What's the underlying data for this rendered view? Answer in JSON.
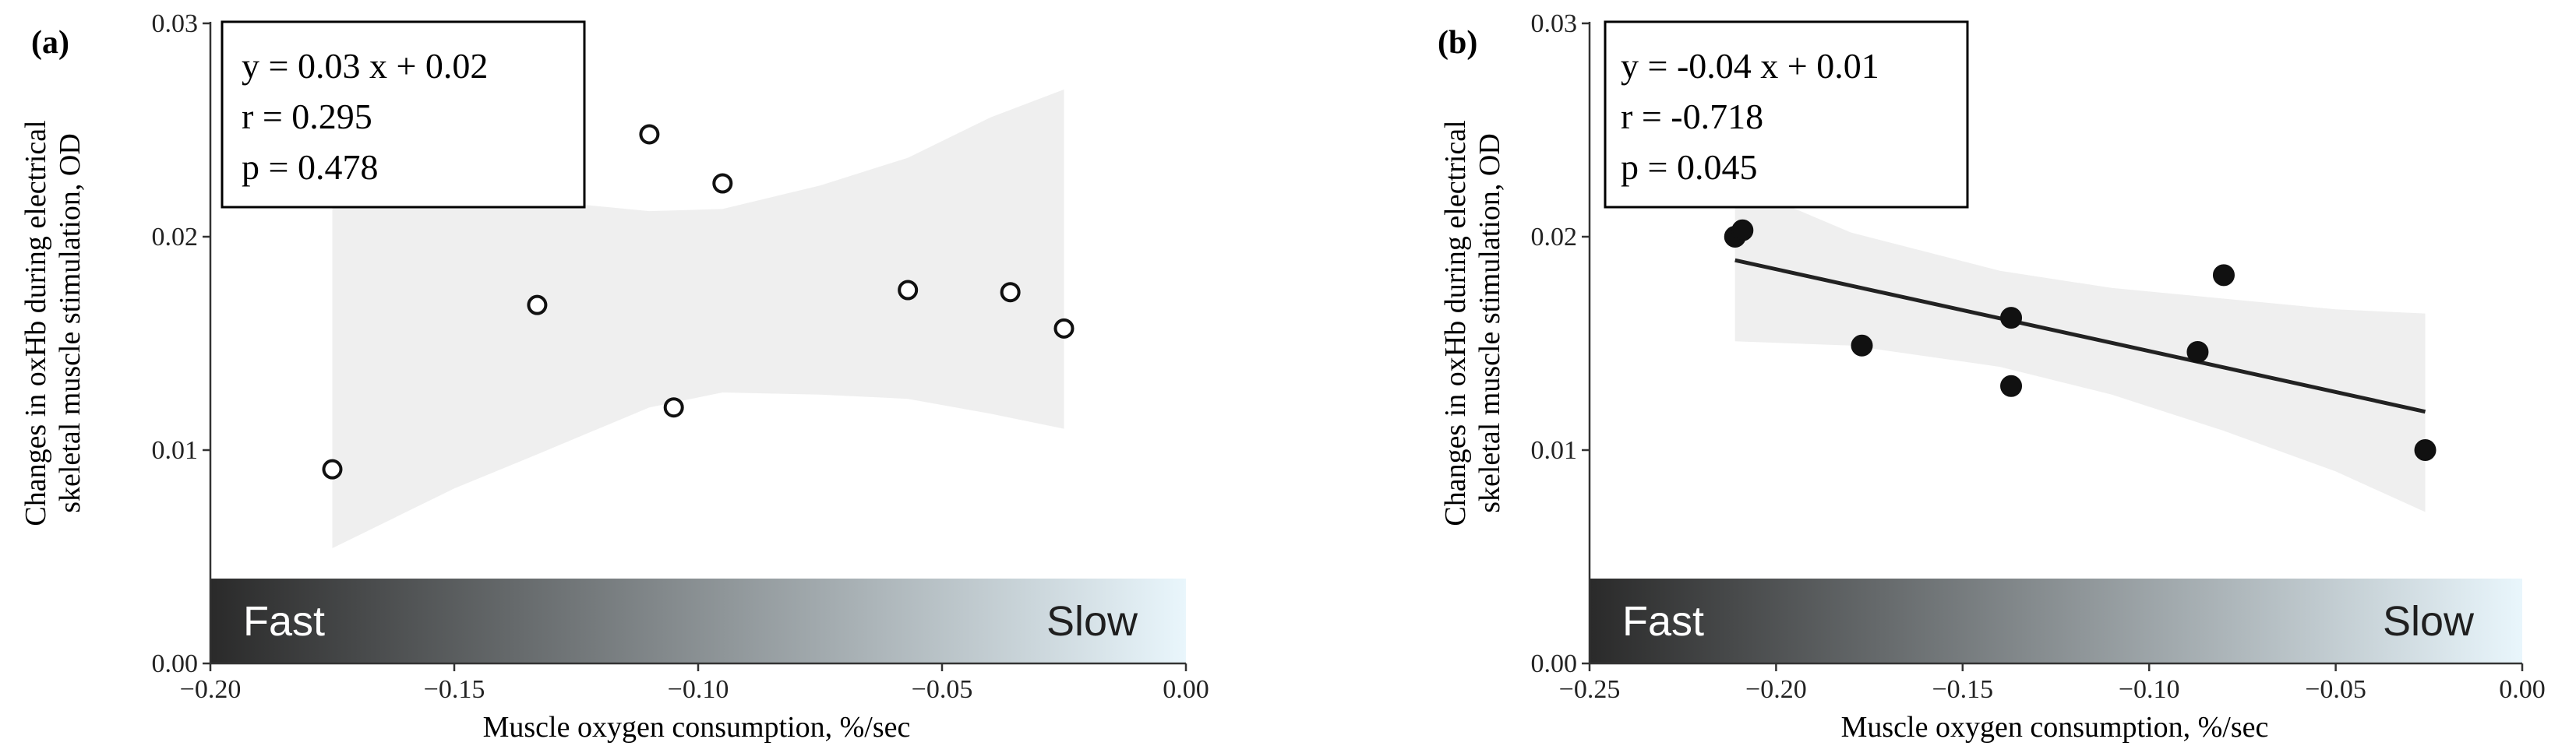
{
  "chart_data": [
    {
      "type": "scatter",
      "panel_label": "(a)",
      "xlabel": "Muscle oxygen consumption, %/sec",
      "ylabel_lines": [
        "Changes in oxHb during electrical",
        "skeletal muscle stimulation, OD"
      ],
      "xlim": [
        -0.2,
        0.0
      ],
      "ylim": [
        0.0,
        0.03
      ],
      "xticks": [
        -0.2,
        -0.15,
        -0.1,
        -0.05,
        0.0
      ],
      "xtick_labels": [
        "−0.20",
        "−0.15",
        "−0.10",
        "−0.05",
        "0.00"
      ],
      "yticks": [
        0.0,
        0.01,
        0.02,
        0.03
      ],
      "ytick_labels": [
        "0.00",
        "0.01",
        "0.02",
        "0.03"
      ],
      "marker": "open-circle",
      "show_fit_line": false,
      "stats": [
        "y = 0.03 x + 0.02",
        "r = 0.295",
        "p = 0.478"
      ],
      "gradient_bar": {
        "left_label": "Fast",
        "right_label": "Slow",
        "colors": [
          "#2a2a2a",
          "#e9f6fc"
        ]
      },
      "points": [
        {
          "x": -0.175,
          "y": 0.0091
        },
        {
          "x": -0.133,
          "y": 0.0168
        },
        {
          "x": -0.11,
          "y": 0.0248
        },
        {
          "x": -0.105,
          "y": 0.012
        },
        {
          "x": -0.095,
          "y": 0.0225
        },
        {
          "x": -0.057,
          "y": 0.0175
        },
        {
          "x": -0.036,
          "y": 0.0174
        },
        {
          "x": -0.025,
          "y": 0.0157
        }
      ],
      "confidence_band": {
        "x": [
          -0.175,
          -0.15,
          -0.133,
          -0.11,
          -0.095,
          -0.075,
          -0.057,
          -0.04,
          -0.025
        ],
        "upper": [
          0.0229,
          0.0222,
          0.0217,
          0.0212,
          0.0213,
          0.0224,
          0.0237,
          0.0256,
          0.0269
        ],
        "lower": [
          0.0054,
          0.0082,
          0.0098,
          0.012,
          0.0127,
          0.0126,
          0.0124,
          0.0117,
          0.011
        ]
      }
    },
    {
      "type": "scatter",
      "panel_label": "(b)",
      "xlabel": "Muscle oxygen consumption, %/sec",
      "ylabel_lines": [
        "Changes in oxHb during electrical",
        "skeletal muscle stimulation, OD"
      ],
      "xlim": [
        -0.25,
        0.0
      ],
      "ylim": [
        0.0,
        0.03
      ],
      "xticks": [
        -0.25,
        -0.2,
        -0.15,
        -0.1,
        -0.05,
        0.0
      ],
      "xtick_labels": [
        "−0.25",
        "−0.20",
        "−0.15",
        "−0.10",
        "−0.05",
        "0.00"
      ],
      "yticks": [
        0.0,
        0.01,
        0.02,
        0.03
      ],
      "ytick_labels": [
        "0.00",
        "0.01",
        "0.02",
        "0.03"
      ],
      "marker": "filled-circle",
      "show_fit_line": true,
      "fit_line": {
        "x": [
          -0.211,
          -0.026
        ],
        "y": [
          0.0189,
          0.0118
        ]
      },
      "stats": [
        "y = -0.04 x + 0.01",
        "r = -0.718",
        "p = 0.045"
      ],
      "gradient_bar": {
        "left_label": "Fast",
        "right_label": "Slow",
        "colors": [
          "#2a2a2a",
          "#e9f6fc"
        ]
      },
      "points": [
        {
          "x": -0.211,
          "y": 0.02
        },
        {
          "x": -0.209,
          "y": 0.0203
        },
        {
          "x": -0.177,
          "y": 0.0149
        },
        {
          "x": -0.137,
          "y": 0.0162
        },
        {
          "x": -0.137,
          "y": 0.013
        },
        {
          "x": -0.087,
          "y": 0.0146
        },
        {
          "x": -0.08,
          "y": 0.0182
        },
        {
          "x": -0.026,
          "y": 0.01
        }
      ],
      "confidence_band": {
        "x": [
          -0.211,
          -0.18,
          -0.14,
          -0.11,
          -0.08,
          -0.05,
          -0.026
        ],
        "upper": [
          0.0225,
          0.0202,
          0.0184,
          0.0176,
          0.0171,
          0.0166,
          0.0164
        ],
        "lower": [
          0.0151,
          0.0149,
          0.0139,
          0.0126,
          0.0109,
          0.009,
          0.0071
        ]
      }
    }
  ]
}
